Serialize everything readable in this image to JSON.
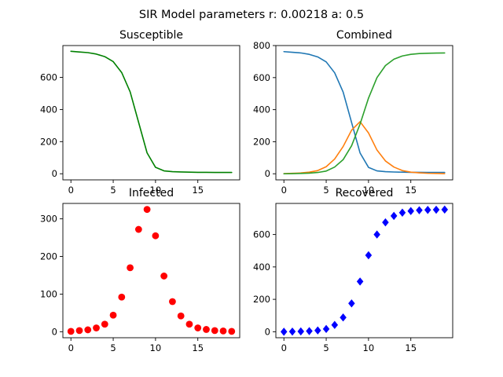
{
  "figure": {
    "suptitle": "SIR Model parameters r: 0.00218 a: 0.5"
  },
  "chart_data": [
    {
      "type": "line",
      "title": "Susceptible",
      "xlabel": "",
      "ylabel": "",
      "xlim": [
        -0.95,
        19.95
      ],
      "ylim": [
        -38,
        798
      ],
      "xticks": [
        0,
        5,
        10,
        15
      ],
      "yticks": [
        0,
        200,
        400,
        600
      ],
      "grid": false,
      "x": [
        0,
        1,
        2,
        3,
        4,
        5,
        6,
        7,
        8,
        9,
        10,
        11,
        12,
        13,
        14,
        15,
        16,
        17,
        18,
        19
      ],
      "series": [
        {
          "color": "#008000",
          "values": [
            762,
            758,
            754,
            745,
            729,
            698,
            630,
            510,
            320,
            130,
            40,
            18,
            13,
            11,
            10,
            9,
            9,
            8,
            8,
            8
          ]
        }
      ]
    },
    {
      "type": "line",
      "title": "Combined",
      "xlabel": "",
      "ylabel": "",
      "xlim": [
        -0.95,
        19.95
      ],
      "ylim": [
        -38,
        800
      ],
      "xticks": [
        0,
        5,
        10,
        15
      ],
      "yticks": [
        0,
        200,
        400,
        600,
        800
      ],
      "grid": false,
      "x": [
        0,
        1,
        2,
        3,
        4,
        5,
        6,
        7,
        8,
        9,
        10,
        11,
        12,
        13,
        14,
        15,
        16,
        17,
        18,
        19
      ],
      "series": [
        {
          "color": "#1f77b4",
          "values": [
            762,
            758,
            754,
            745,
            729,
            698,
            630,
            510,
            320,
            130,
            40,
            18,
            13,
            11,
            10,
            9,
            9,
            8,
            8,
            8
          ]
        },
        {
          "color": "#ff7f0e",
          "values": [
            1,
            3,
            5,
            10,
            20,
            44,
            92,
            170,
            272,
            325,
            255,
            148,
            80,
            42,
            20,
            10,
            6,
            3,
            2,
            1
          ]
        },
        {
          "color": "#2ca02c",
          "values": [
            0,
            1,
            2,
            4,
            8,
            17,
            42,
            88,
            175,
            310,
            472,
            600,
            675,
            715,
            735,
            745,
            750,
            752,
            753,
            754
          ]
        }
      ]
    },
    {
      "type": "scatter",
      "title": "Infected",
      "xlabel": "",
      "ylabel": "",
      "xlim": [
        -0.95,
        19.95
      ],
      "ylim": [
        -16,
        341
      ],
      "xticks": [
        0,
        5,
        10,
        15
      ],
      "yticks": [
        0,
        100,
        200,
        300
      ],
      "grid": false,
      "marker": "circle",
      "x": [
        0,
        1,
        2,
        3,
        4,
        5,
        6,
        7,
        8,
        9,
        10,
        11,
        12,
        13,
        14,
        15,
        16,
        17,
        18,
        19
      ],
      "series": [
        {
          "color": "#ff0000",
          "values": [
            1,
            3,
            5,
            10,
            20,
            44,
            92,
            170,
            272,
            325,
            255,
            148,
            80,
            42,
            20,
            10,
            6,
            3,
            2,
            1
          ]
        }
      ]
    },
    {
      "type": "scatter",
      "title": "Recovered",
      "xlabel": "",
      "ylabel": "",
      "xlim": [
        -0.95,
        19.95
      ],
      "ylim": [
        -37,
        792
      ],
      "xticks": [
        0,
        5,
        10,
        15
      ],
      "yticks": [
        0,
        200,
        400,
        600
      ],
      "grid": false,
      "marker": "diamond",
      "x": [
        0,
        1,
        2,
        3,
        4,
        5,
        6,
        7,
        8,
        9,
        10,
        11,
        12,
        13,
        14,
        15,
        16,
        17,
        18,
        19
      ],
      "series": [
        {
          "color": "#0000ff",
          "values": [
            0,
            1,
            2,
            4,
            8,
            17,
            42,
            88,
            175,
            310,
            472,
            600,
            675,
            715,
            735,
            745,
            750,
            752,
            753,
            754
          ]
        }
      ]
    }
  ]
}
